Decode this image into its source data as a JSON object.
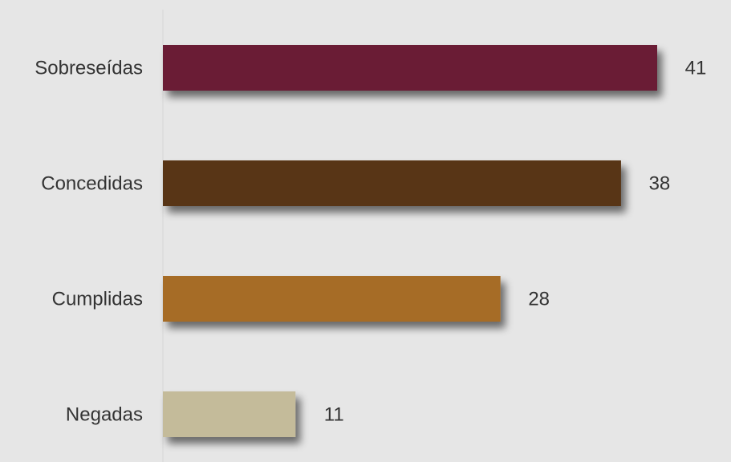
{
  "chart_data": {
    "type": "bar",
    "orientation": "horizontal",
    "categories": [
      "Sobreseídas",
      "Concedidas",
      "Cumplidas",
      "Negadas"
    ],
    "values": [
      41,
      38,
      28,
      11
    ],
    "colors": [
      "#6a1c35",
      "#583616",
      "#a66c25",
      "#c4bb9a"
    ],
    "background": "#e6e6e6",
    "title": "",
    "xlabel": "",
    "ylabel": "",
    "xlim": [
      0,
      41
    ],
    "grid": false,
    "legend": "none",
    "data_labels": true
  }
}
